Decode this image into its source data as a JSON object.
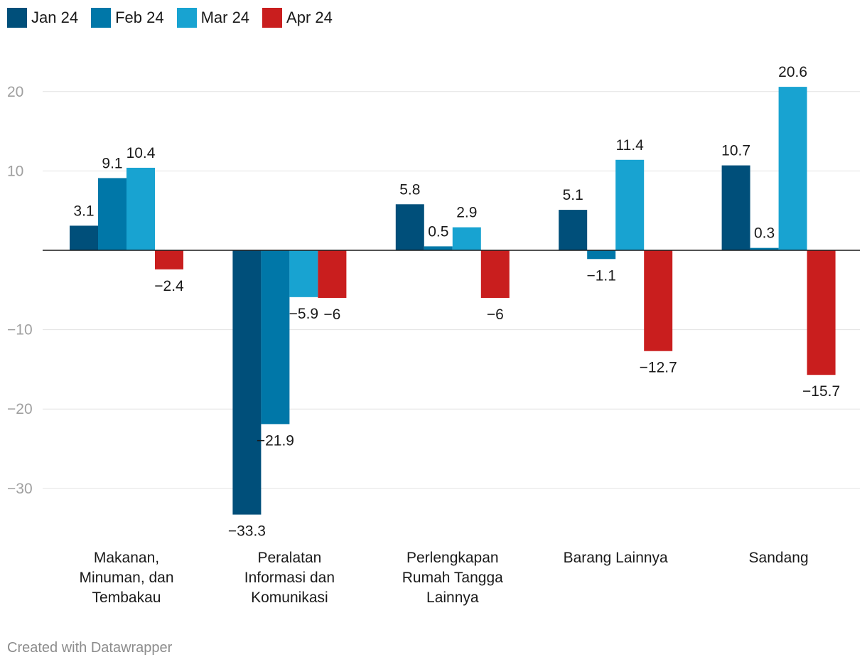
{
  "chart_data": {
    "type": "bar",
    "title": "",
    "xlabel": "",
    "ylabel": "",
    "ylim": [
      -38,
      25
    ],
    "yticks": [
      20,
      10,
      -10,
      -20,
      -30
    ],
    "grid": true,
    "legend_position": "top-left",
    "categories": [
      [
        "Makanan,",
        "Minuman, dan",
        "Tembakau"
      ],
      [
        "Peralatan",
        "Informasi dan",
        "Komunikasi"
      ],
      [
        "Perlengkapan",
        "Rumah Tangga",
        "Lainnya"
      ],
      [
        "Barang Lainnya"
      ],
      [
        "Sandang"
      ]
    ],
    "series": [
      {
        "name": "Jan 24",
        "color": "#004f7a",
        "values": [
          3.1,
          -33.3,
          5.8,
          5.1,
          10.7
        ]
      },
      {
        "name": "Feb 24",
        "color": "#0077a8",
        "values": [
          9.1,
          -21.9,
          0.5,
          -1.1,
          0.3
        ]
      },
      {
        "name": "Mar 24",
        "color": "#18a3d1",
        "values": [
          10.4,
          -5.9,
          2.9,
          11.4,
          20.6
        ]
      },
      {
        "name": "Apr 24",
        "color": "#c91e1e",
        "values": [
          -2.4,
          -6,
          -6,
          -12.7,
          -15.7
        ]
      }
    ]
  },
  "footer": "Created with Datawrapper"
}
